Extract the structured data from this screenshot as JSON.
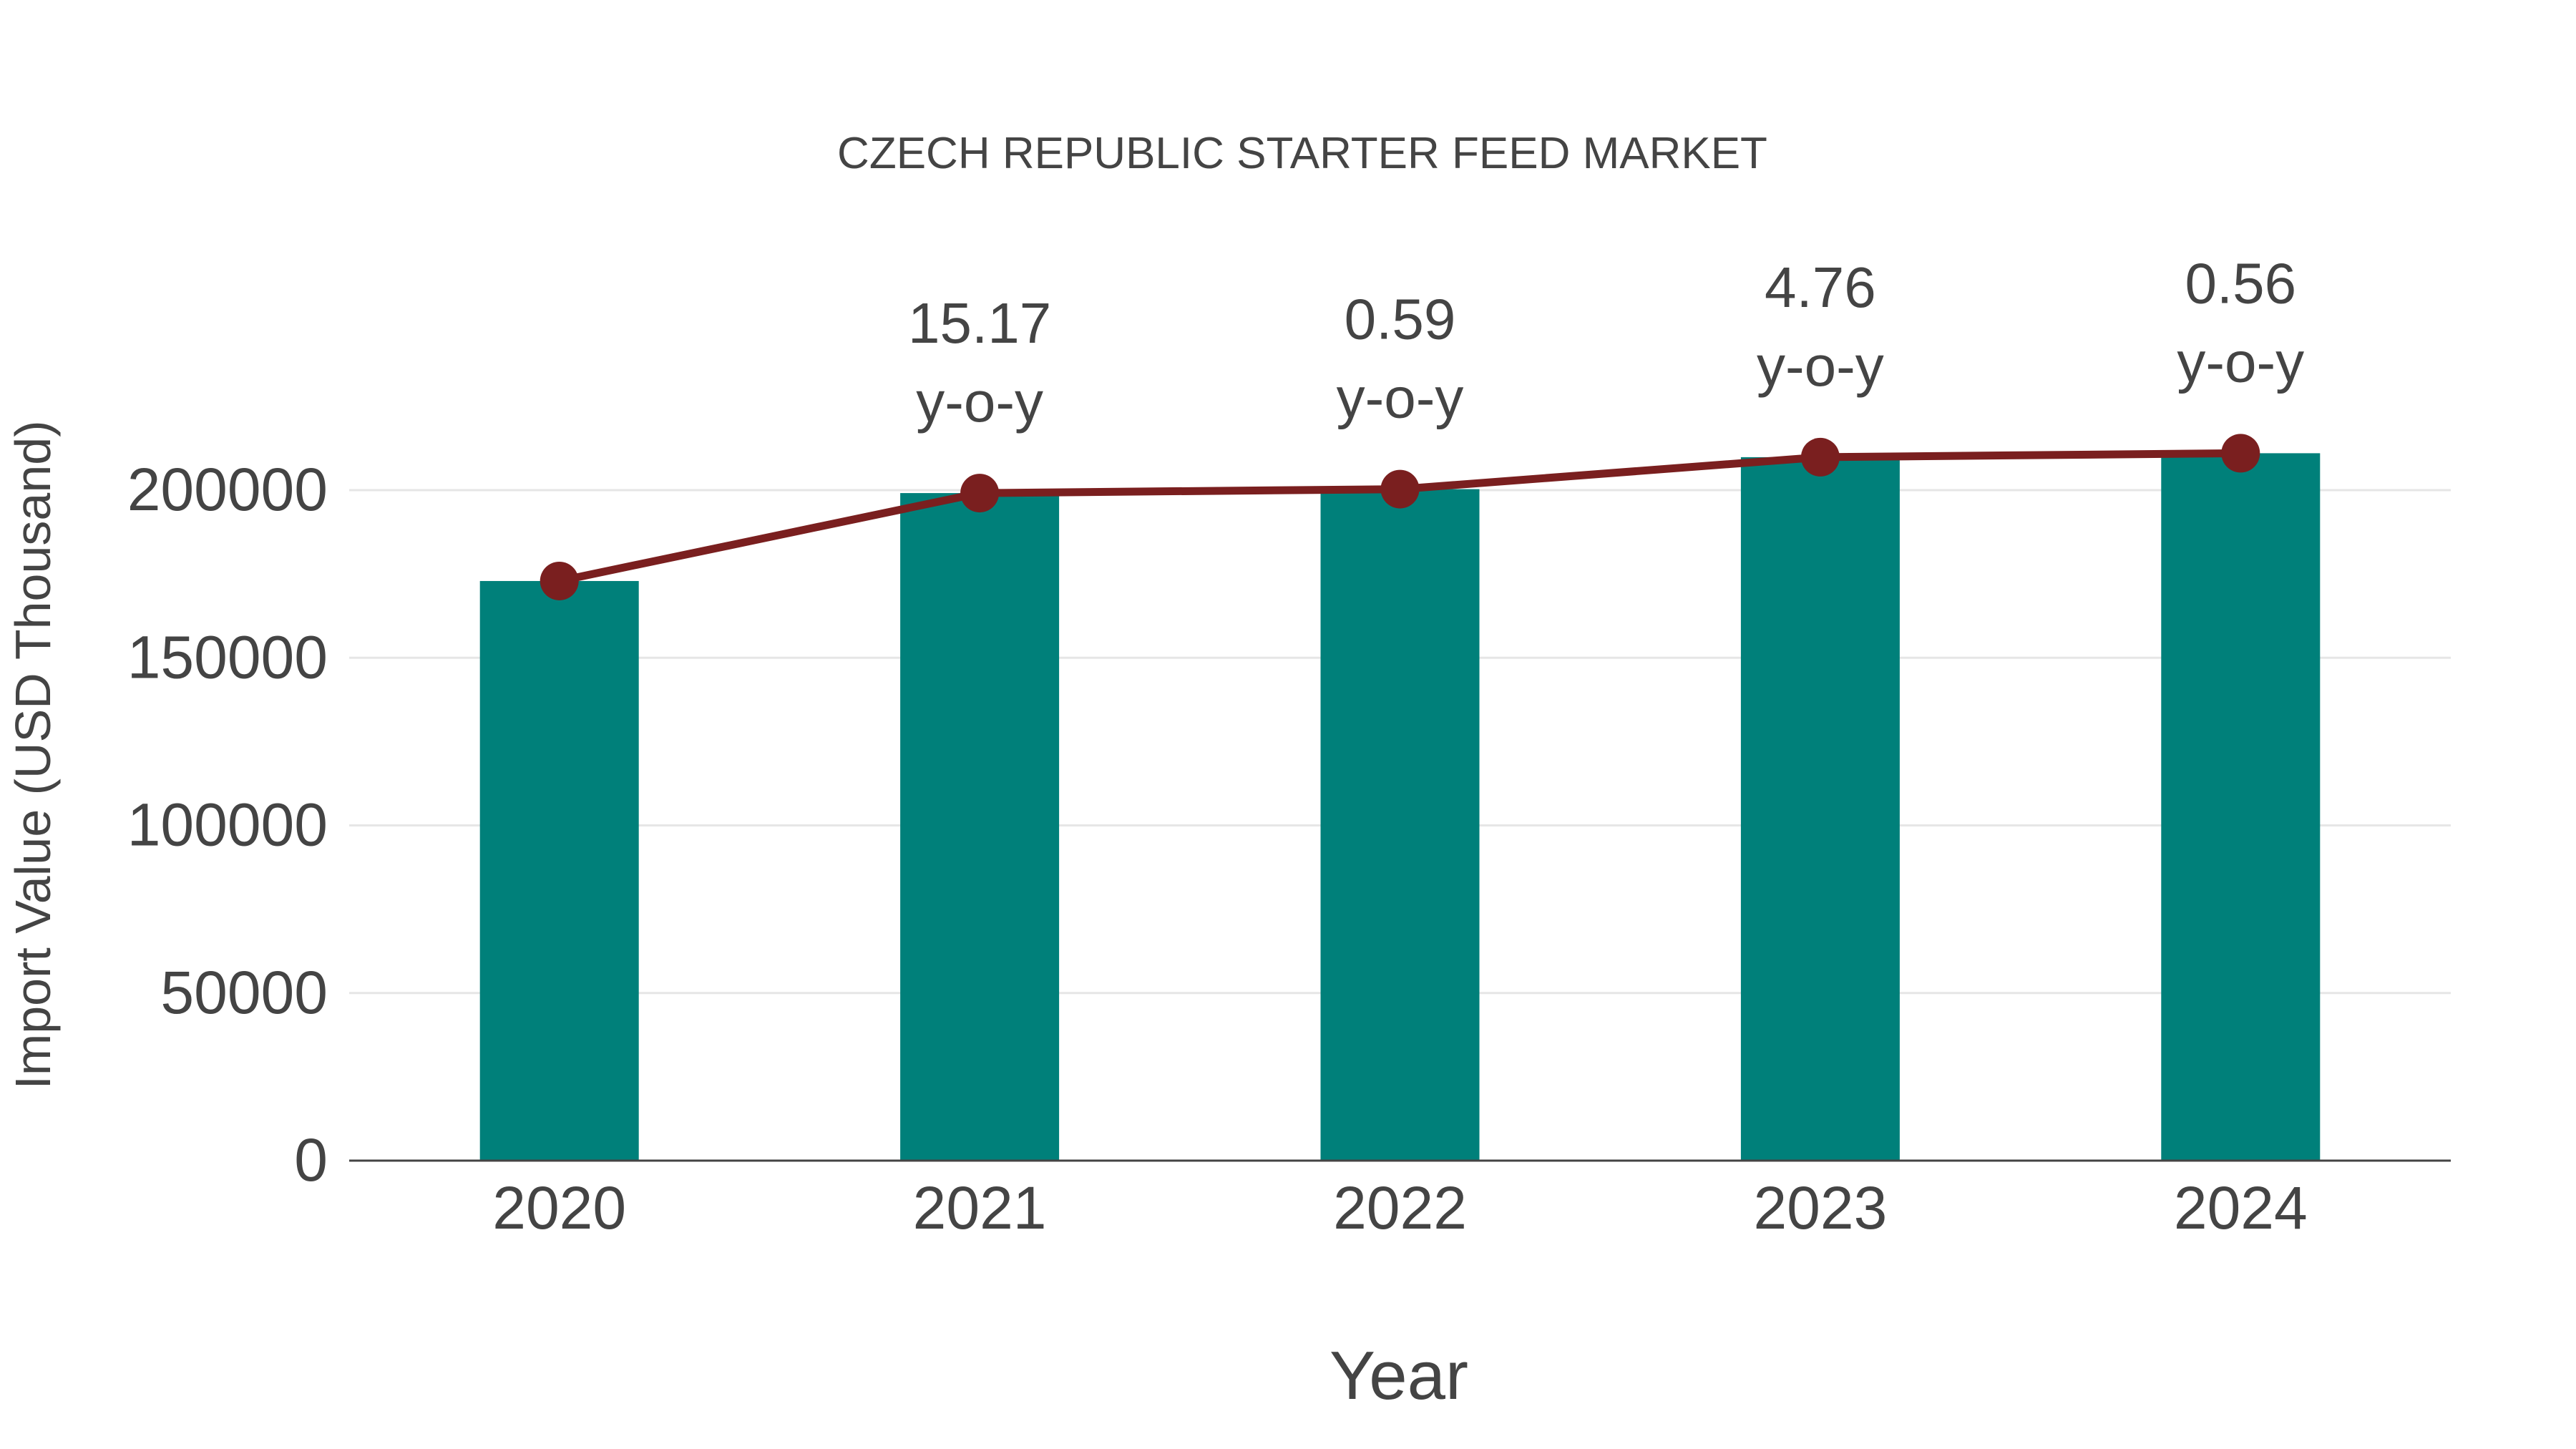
{
  "chart_data": {
    "type": "bar",
    "title": "CZECH REPUBLIC STARTER FEED MARKET",
    "xlabel": "Year",
    "ylabel": "Import Value (USD Thousand)",
    "categories": [
      "2020",
      "2021",
      "2022",
      "2023",
      "2024"
    ],
    "series": [
      {
        "name": "Import Value",
        "type": "bar",
        "color": "#00807a",
        "values": [
          172900,
          199130,
          200300,
          209840,
          211015
        ]
      },
      {
        "name": "Trend",
        "type": "line",
        "color": "#7a1f1f",
        "values": [
          172900,
          199130,
          200300,
          209840,
          211015
        ]
      }
    ],
    "annotations": [
      {
        "category": "2021",
        "value": "15.17",
        "suffix": "y-o-y"
      },
      {
        "category": "2022",
        "value": "0.59",
        "suffix": "y-o-y"
      },
      {
        "category": "2023",
        "value": "4.76",
        "suffix": "y-o-y"
      },
      {
        "category": "2024",
        "value": "0.56",
        "suffix": "y-o-y"
      }
    ],
    "yticks": [
      0,
      50000,
      100000,
      150000,
      200000
    ],
    "ylim": [
      0,
      200000
    ],
    "grid": true,
    "legend": false
  },
  "colors": {
    "bar": "#00807a",
    "line": "#7a1f1f",
    "text": "#444444",
    "grid": "#e6e6e6",
    "axis": "#444444"
  }
}
